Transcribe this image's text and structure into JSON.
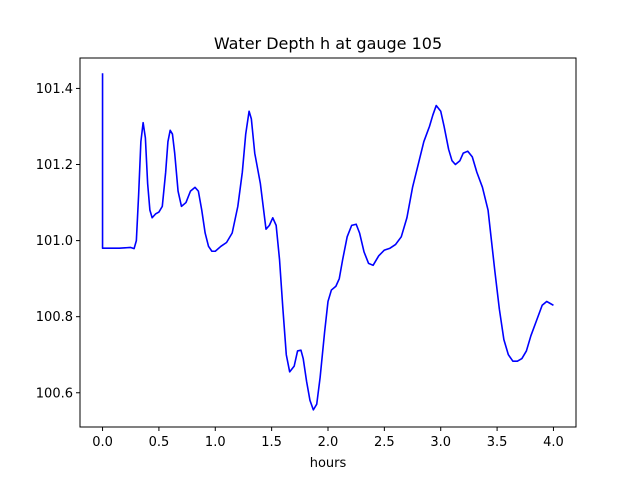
{
  "chart_data": {
    "type": "line",
    "title": "Water Depth h at gauge 105",
    "xlabel": "hours",
    "ylabel": "",
    "xlim": [
      -0.2,
      4.2
    ],
    "ylim": [
      100.51,
      101.48
    ],
    "xticks": [
      0.0,
      0.5,
      1.0,
      1.5,
      2.0,
      2.5,
      3.0,
      3.5,
      4.0
    ],
    "xtick_labels": [
      "0.0",
      "0.5",
      "1.0",
      "1.5",
      "2.0",
      "2.5",
      "3.0",
      "3.5",
      "4.0"
    ],
    "yticks": [
      100.6,
      100.8,
      101.0,
      101.2,
      101.4
    ],
    "ytick_labels": [
      "100.6",
      "100.8",
      "101.0",
      "101.2",
      "101.4"
    ],
    "grid": false,
    "series": [
      {
        "color": "#0000ff",
        "points": [
          [
            0.0,
            101.44
          ],
          [
            0.0,
            100.98
          ],
          [
            0.05,
            100.98
          ],
          [
            0.1,
            100.98
          ],
          [
            0.15,
            100.98
          ],
          [
            0.2,
            100.981
          ],
          [
            0.25,
            100.982
          ],
          [
            0.28,
            100.979
          ],
          [
            0.3,
            101.0
          ],
          [
            0.32,
            101.12
          ],
          [
            0.34,
            101.26
          ],
          [
            0.36,
            101.31
          ],
          [
            0.38,
            101.27
          ],
          [
            0.4,
            101.15
          ],
          [
            0.42,
            101.08
          ],
          [
            0.44,
            101.06
          ],
          [
            0.47,
            101.07
          ],
          [
            0.5,
            101.075
          ],
          [
            0.53,
            101.09
          ],
          [
            0.56,
            101.18
          ],
          [
            0.58,
            101.26
          ],
          [
            0.6,
            101.29
          ],
          [
            0.62,
            101.28
          ],
          [
            0.64,
            101.23
          ],
          [
            0.67,
            101.13
          ],
          [
            0.7,
            101.09
          ],
          [
            0.74,
            101.1
          ],
          [
            0.78,
            101.13
          ],
          [
            0.82,
            101.14
          ],
          [
            0.85,
            101.13
          ],
          [
            0.88,
            101.08
          ],
          [
            0.91,
            101.02
          ],
          [
            0.94,
            100.985
          ],
          [
            0.97,
            100.972
          ],
          [
            1.0,
            100.972
          ],
          [
            1.05,
            100.985
          ],
          [
            1.1,
            100.995
          ],
          [
            1.15,
            101.02
          ],
          [
            1.2,
            101.09
          ],
          [
            1.24,
            101.18
          ],
          [
            1.27,
            101.28
          ],
          [
            1.3,
            101.34
          ],
          [
            1.32,
            101.32
          ],
          [
            1.35,
            101.23
          ],
          [
            1.4,
            101.15
          ],
          [
            1.45,
            101.03
          ],
          [
            1.48,
            101.04
          ],
          [
            1.51,
            101.06
          ],
          [
            1.54,
            101.04
          ],
          [
            1.57,
            100.95
          ],
          [
            1.6,
            100.82
          ],
          [
            1.63,
            100.7
          ],
          [
            1.66,
            100.655
          ],
          [
            1.7,
            100.67
          ],
          [
            1.73,
            100.71
          ],
          [
            1.76,
            100.712
          ],
          [
            1.78,
            100.69
          ],
          [
            1.81,
            100.63
          ],
          [
            1.84,
            100.58
          ],
          [
            1.87,
            100.555
          ],
          [
            1.9,
            100.57
          ],
          [
            1.93,
            100.64
          ],
          [
            1.97,
            100.76
          ],
          [
            2.0,
            100.84
          ],
          [
            2.03,
            100.87
          ],
          [
            2.07,
            100.88
          ],
          [
            2.1,
            100.9
          ],
          [
            2.13,
            100.95
          ],
          [
            2.17,
            101.01
          ],
          [
            2.21,
            101.04
          ],
          [
            2.25,
            101.043
          ],
          [
            2.28,
            101.02
          ],
          [
            2.32,
            100.97
          ],
          [
            2.36,
            100.94
          ],
          [
            2.4,
            100.935
          ],
          [
            2.45,
            100.96
          ],
          [
            2.5,
            100.975
          ],
          [
            2.55,
            100.98
          ],
          [
            2.6,
            100.99
          ],
          [
            2.65,
            101.01
          ],
          [
            2.7,
            101.06
          ],
          [
            2.75,
            101.14
          ],
          [
            2.8,
            101.2
          ],
          [
            2.85,
            101.26
          ],
          [
            2.9,
            101.3
          ],
          [
            2.93,
            101.33
          ],
          [
            2.96,
            101.355
          ],
          [
            3.0,
            101.34
          ],
          [
            3.03,
            101.3
          ],
          [
            3.07,
            101.24
          ],
          [
            3.1,
            101.21
          ],
          [
            3.13,
            101.2
          ],
          [
            3.17,
            101.21
          ],
          [
            3.2,
            101.23
          ],
          [
            3.24,
            101.235
          ],
          [
            3.28,
            101.22
          ],
          [
            3.32,
            101.18
          ],
          [
            3.37,
            101.14
          ],
          [
            3.42,
            101.08
          ],
          [
            3.45,
            101.0
          ],
          [
            3.48,
            100.92
          ],
          [
            3.52,
            100.82
          ],
          [
            3.56,
            100.74
          ],
          [
            3.6,
            100.7
          ],
          [
            3.64,
            100.683
          ],
          [
            3.68,
            100.683
          ],
          [
            3.72,
            100.69
          ],
          [
            3.76,
            100.71
          ],
          [
            3.8,
            100.75
          ],
          [
            3.85,
            100.79
          ],
          [
            3.9,
            100.83
          ],
          [
            3.94,
            100.84
          ],
          [
            3.97,
            100.835
          ],
          [
            4.0,
            100.83
          ]
        ]
      }
    ]
  }
}
